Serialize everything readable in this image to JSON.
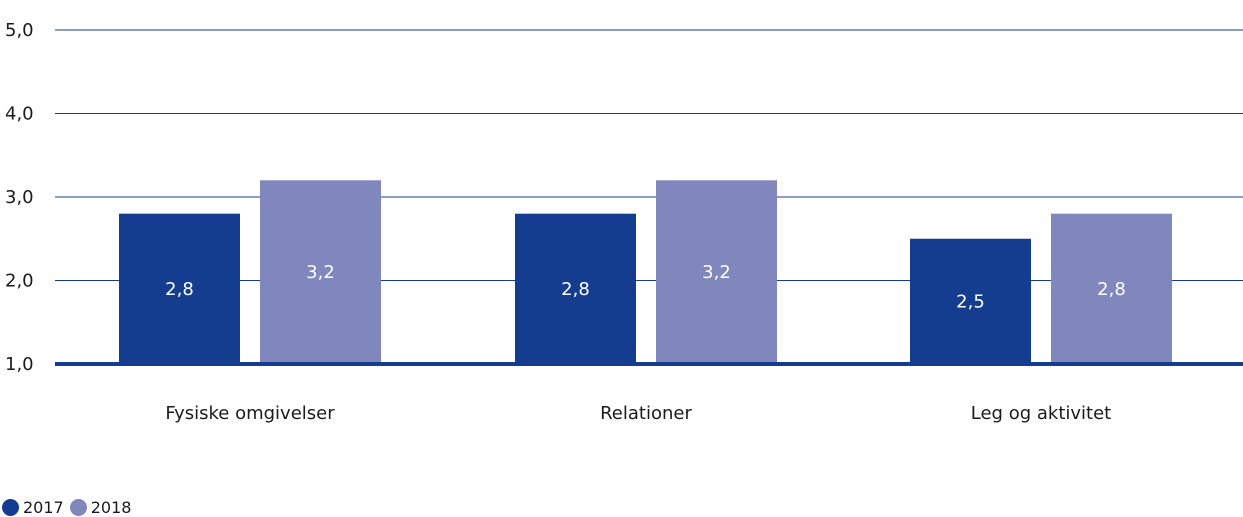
{
  "chart_data": {
    "type": "bar",
    "categories": [
      "Fysiske omgivelser",
      "Relationer",
      "Leg og aktivitet"
    ],
    "series": [
      {
        "name": "2017",
        "values": [
          2.8,
          2.8,
          2.5
        ],
        "labels": [
          "2,8",
          "2,8",
          "2,5"
        ],
        "color": "#143d8f"
      },
      {
        "name": "2018",
        "values": [
          3.2,
          3.2,
          2.8
        ],
        "labels": [
          "3,2",
          "3,2",
          "2,8"
        ],
        "color": "#8087bd"
      }
    ],
    "yticks": [
      1.0,
      2.0,
      3.0,
      4.0,
      5.0
    ],
    "ytick_labels": [
      "1,0",
      "2,0",
      "3,0",
      "4,0",
      "5,0"
    ],
    "ylim": [
      1,
      5
    ],
    "grid": true,
    "legend_position": "bottom-left",
    "axis_color": "#143d8f",
    "text_color": "#1a1a1a"
  }
}
